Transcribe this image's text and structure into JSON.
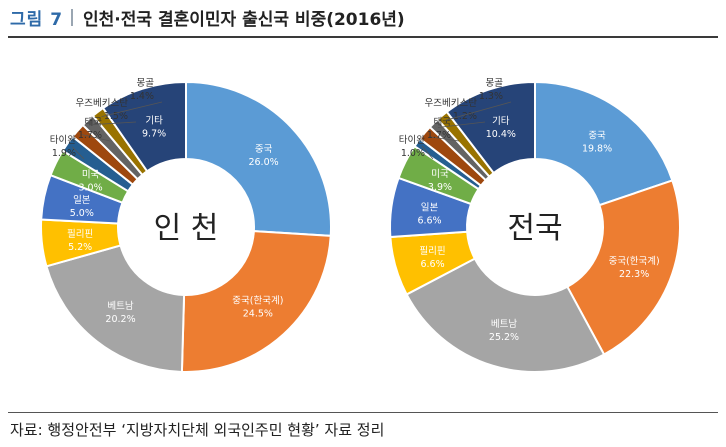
{
  "header": {
    "figure_label": "그림 7",
    "title": "인천·전국 결혼이민자 출신국 비중(2016년)"
  },
  "source_note": "자료: 행정안전부 ‘지방자치단체 외국인주민 현황’ 자료 정리",
  "chart_data": [
    {
      "type": "pie",
      "variant": "donut",
      "center_label": "인 천",
      "unit": "%",
      "start": "12 o'clock, clockwise",
      "slices": [
        {
          "label": "중국",
          "value": 26.0,
          "value_text": "26.0%",
          "color": "#5b9bd5",
          "label_color": "#ffffff"
        },
        {
          "label": "중국(한국계)",
          "value": 24.5,
          "value_text": "24.5%",
          "color": "#ed7d31",
          "label_color": "#ffffff"
        },
        {
          "label": "베트남",
          "value": 20.2,
          "value_text": "20.2%",
          "color": "#a5a5a5",
          "label_color": "#ffffff"
        },
        {
          "label": "필리핀",
          "value": 5.2,
          "value_text": "5.2%",
          "color": "#ffc000",
          "label_color": "#ffffff"
        },
        {
          "label": "일본",
          "value": 5.0,
          "value_text": "5.0%",
          "color": "#4472c4",
          "label_color": "#ffffff"
        },
        {
          "label": "미국",
          "value": 3.0,
          "value_text": "3.0%",
          "color": "#70ad47",
          "label_color": "#ffffff"
        },
        {
          "label": "타이완",
          "value": 1.9,
          "value_text": "1.9%",
          "color": "#255e91",
          "label_color": "#333333"
        },
        {
          "label": "태국",
          "value": 1.7,
          "value_text": "1.7%",
          "color": "#9e480e",
          "label_color": "#333333"
        },
        {
          "label": "우즈베키스탄",
          "value": 1.5,
          "value_text": "1.5%",
          "color": "#636363",
          "label_color": "#333333"
        },
        {
          "label": "몽골",
          "value": 1.4,
          "value_text": "1.4%",
          "color": "#997300",
          "label_color": "#333333"
        },
        {
          "label": "기타",
          "value": 9.7,
          "value_text": "9.7%",
          "color": "#264478",
          "label_color": "#ffffff"
        }
      ]
    },
    {
      "type": "pie",
      "variant": "donut",
      "center_label": "전국",
      "unit": "%",
      "start": "12 o'clock, clockwise",
      "slices": [
        {
          "label": "중국",
          "value": 19.8,
          "value_text": "19.8%",
          "color": "#5b9bd5",
          "label_color": "#ffffff"
        },
        {
          "label": "중국(한국계)",
          "value": 22.3,
          "value_text": "22.3%",
          "color": "#ed7d31",
          "label_color": "#ffffff"
        },
        {
          "label": "베트남",
          "value": 25.2,
          "value_text": "25.2%",
          "color": "#a5a5a5",
          "label_color": "#ffffff"
        },
        {
          "label": "필리핀",
          "value": 6.6,
          "value_text": "6.6%",
          "color": "#ffc000",
          "label_color": "#ffffff"
        },
        {
          "label": "일본",
          "value": 6.6,
          "value_text": "6.6%",
          "color": "#4472c4",
          "label_color": "#ffffff"
        },
        {
          "label": "미국",
          "value": 3.9,
          "value_text": "3.9%",
          "color": "#70ad47",
          "label_color": "#ffffff"
        },
        {
          "label": "타이완",
          "value": 1.0,
          "value_text": "1.0%",
          "color": "#255e91",
          "label_color": "#333333"
        },
        {
          "label": "태국",
          "value": 1.7,
          "value_text": "1.7%",
          "color": "#9e480e",
          "label_color": "#333333"
        },
        {
          "label": "우즈베키스탄",
          "value": 1.2,
          "value_text": "1.2%",
          "color": "#636363",
          "label_color": "#333333"
        },
        {
          "label": "몽골",
          "value": 1.3,
          "value_text": "1.3%",
          "color": "#997300",
          "label_color": "#333333"
        },
        {
          "label": "기타",
          "value": 10.4,
          "value_text": "10.4%",
          "color": "#264478",
          "label_color": "#ffffff"
        }
      ]
    }
  ]
}
